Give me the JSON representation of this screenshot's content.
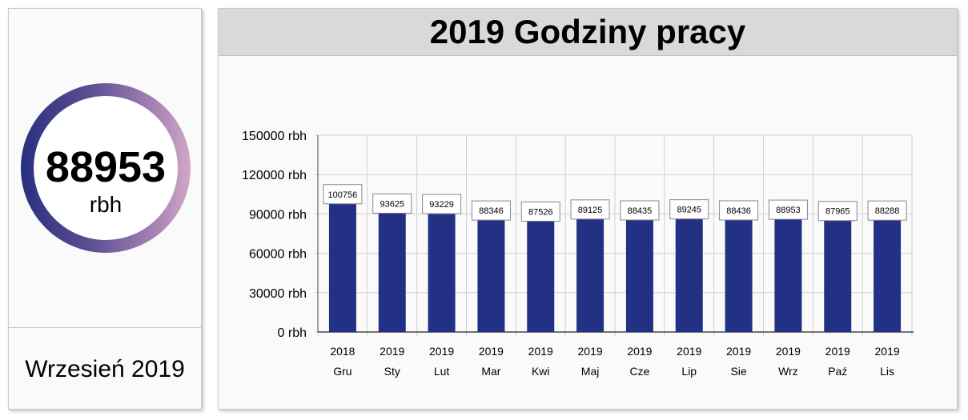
{
  "summary": {
    "value": "88953",
    "unit": "rbh",
    "period": "Wrzesień 2019"
  },
  "header": {
    "title": "2019 Godziny pracy"
  },
  "colors": {
    "bar": "#233185",
    "gauge_start": "#27307f",
    "gauge_end": "#d2a6c6"
  },
  "chart_data": {
    "type": "bar",
    "title": "2019 Godziny pracy",
    "categories": [
      {
        "year": "2018",
        "month": "Gru"
      },
      {
        "year": "2019",
        "month": "Sty"
      },
      {
        "year": "2019",
        "month": "Lut"
      },
      {
        "year": "2019",
        "month": "Mar"
      },
      {
        "year": "2019",
        "month": "Kwi"
      },
      {
        "year": "2019",
        "month": "Maj"
      },
      {
        "year": "2019",
        "month": "Cze"
      },
      {
        "year": "2019",
        "month": "Lip"
      },
      {
        "year": "2019",
        "month": "Sie"
      },
      {
        "year": "2019",
        "month": "Wrz"
      },
      {
        "year": "2019",
        "month": "Paź"
      },
      {
        "year": "2019",
        "month": "Lis"
      }
    ],
    "values": [
      100756,
      93625,
      93229,
      88346,
      87526,
      89125,
      88435,
      89245,
      88436,
      88953,
      87965,
      88288
    ],
    "ylim": [
      0,
      150000
    ],
    "yticks": [
      0,
      30000,
      60000,
      90000,
      120000,
      150000
    ],
    "ytick_labels": [
      "0 rbh",
      "30000 rbh",
      "60000 rbh",
      "90000 rbh",
      "120000 rbh",
      "150000 rbh"
    ],
    "grid": true,
    "data_labels": true
  }
}
